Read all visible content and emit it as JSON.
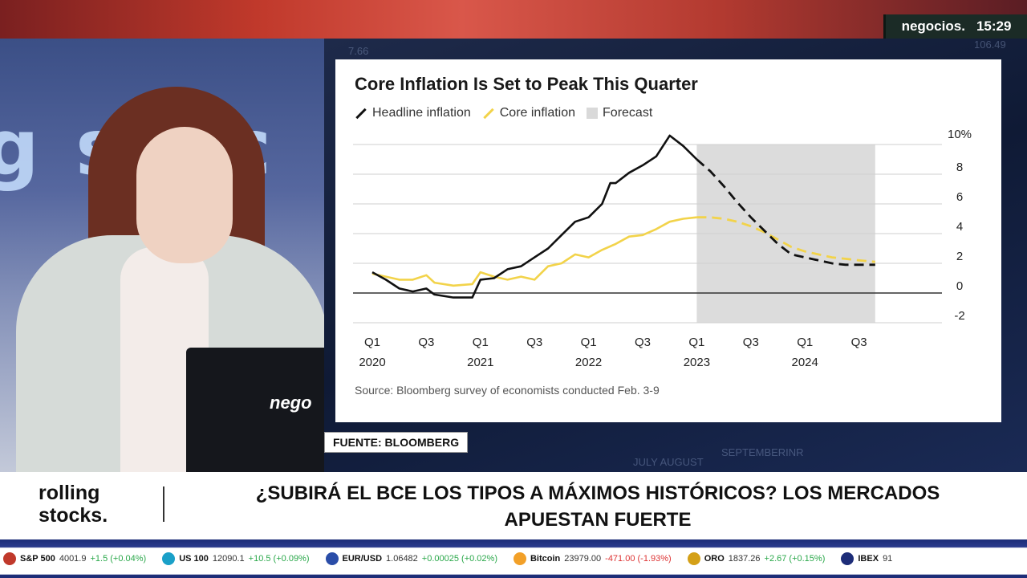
{
  "broadcast": {
    "channel_logo": "negocios.",
    "time": "15:29",
    "studio_wall_text": "g stoc",
    "watermark": "nego",
    "source_tag": "FUENTE: BLOOMBERG"
  },
  "background_ghost_text": [
    "7.66",
    "SEPTEMBERINR",
    "JULY AUGUST",
    "106.49"
  ],
  "chart": {
    "title": "Core Inflation Is Set to Peak This Quarter",
    "legend": [
      {
        "label": "Headline inflation",
        "color": "#111111"
      },
      {
        "label": "Core inflation",
        "color": "#f2d34a"
      },
      {
        "label": "Forecast",
        "color": "#d9d9d9"
      }
    ],
    "source": "Source: Bloomberg survey of economists conducted Feb. 3-9"
  },
  "chart_data": {
    "type": "line",
    "title": "Core Inflation Is Set to Peak This Quarter",
    "x_tick_labels": [
      {
        "q": 0,
        "top": "Q1",
        "bottom": "2020"
      },
      {
        "q": 2,
        "top": "Q3",
        "bottom": ""
      },
      {
        "q": 4,
        "top": "Q1",
        "bottom": "2021"
      },
      {
        "q": 6,
        "top": "Q3",
        "bottom": ""
      },
      {
        "q": 8,
        "top": "Q1",
        "bottom": "2022"
      },
      {
        "q": 10,
        "top": "Q3",
        "bottom": ""
      },
      {
        "q": 12,
        "top": "Q1",
        "bottom": "2023"
      },
      {
        "q": 14,
        "top": "Q3",
        "bottom": ""
      },
      {
        "q": 16,
        "top": "Q1",
        "bottom": "2024"
      },
      {
        "q": 18,
        "top": "Q3",
        "bottom": ""
      }
    ],
    "y_ticks": [
      -2,
      0,
      2,
      4,
      6,
      8,
      10
    ],
    "y_tick_labels": [
      "-2",
      "0",
      "2",
      "4",
      "6",
      "8",
      "10%"
    ],
    "ylim": [
      -2,
      10
    ],
    "xlim": [
      0,
      20
    ],
    "forecast_range": [
      12,
      18.6
    ],
    "grid": true,
    "series": [
      {
        "name": "Headline inflation",
        "color": "#111111",
        "actual": [
          [
            0,
            1.4
          ],
          [
            0.5,
            0.9
          ],
          [
            1,
            0.3
          ],
          [
            1.5,
            0.1
          ],
          [
            2,
            0.3
          ],
          [
            2.3,
            -0.1
          ],
          [
            3,
            -0.3
          ],
          [
            3.7,
            -0.3
          ],
          [
            4,
            0.9
          ],
          [
            4.5,
            1.0
          ],
          [
            5,
            1.6
          ],
          [
            5.5,
            1.8
          ],
          [
            6,
            2.4
          ],
          [
            6.5,
            3.0
          ],
          [
            7,
            3.9
          ],
          [
            7.5,
            4.8
          ],
          [
            8,
            5.1
          ],
          [
            8.5,
            6.0
          ],
          [
            8.8,
            7.4
          ],
          [
            9,
            7.4
          ],
          [
            9.5,
            8.1
          ],
          [
            10,
            8.6
          ],
          [
            10.5,
            9.2
          ],
          [
            11,
            10.6
          ],
          [
            11.5,
            9.9
          ],
          [
            12,
            9.0
          ]
        ],
        "forecast": [
          [
            12,
            9.0
          ],
          [
            12.5,
            8.2
          ],
          [
            13,
            7.2
          ],
          [
            13.5,
            6.1
          ],
          [
            14,
            5.1
          ],
          [
            14.5,
            4.2
          ],
          [
            15,
            3.3
          ],
          [
            15.5,
            2.6
          ],
          [
            16,
            2.4
          ],
          [
            16.5,
            2.2
          ],
          [
            17,
            2.0
          ],
          [
            17.5,
            1.9
          ],
          [
            18,
            1.9
          ],
          [
            18.6,
            1.9
          ]
        ]
      },
      {
        "name": "Core inflation",
        "color": "#f2d34a",
        "actual": [
          [
            0,
            1.3
          ],
          [
            0.5,
            1.1
          ],
          [
            1,
            0.9
          ],
          [
            1.5,
            0.9
          ],
          [
            2,
            1.2
          ],
          [
            2.3,
            0.7
          ],
          [
            3,
            0.5
          ],
          [
            3.7,
            0.6
          ],
          [
            4,
            1.4
          ],
          [
            4.5,
            1.1
          ],
          [
            5,
            0.9
          ],
          [
            5.5,
            1.1
          ],
          [
            6,
            0.9
          ],
          [
            6.5,
            1.8
          ],
          [
            7,
            2.0
          ],
          [
            7.5,
            2.6
          ],
          [
            8,
            2.4
          ],
          [
            8.5,
            2.9
          ],
          [
            9,
            3.3
          ],
          [
            9.5,
            3.8
          ],
          [
            10,
            3.9
          ],
          [
            10.5,
            4.3
          ],
          [
            11,
            4.8
          ],
          [
            11.5,
            5.0
          ],
          [
            12,
            5.1
          ]
        ],
        "forecast": [
          [
            12,
            5.1
          ],
          [
            12.5,
            5.1
          ],
          [
            13,
            5.0
          ],
          [
            13.5,
            4.8
          ],
          [
            14,
            4.5
          ],
          [
            14.5,
            4.1
          ],
          [
            15,
            3.6
          ],
          [
            15.5,
            3.1
          ],
          [
            16,
            2.8
          ],
          [
            16.5,
            2.6
          ],
          [
            17,
            2.4
          ],
          [
            17.5,
            2.3
          ],
          [
            18,
            2.2
          ],
          [
            18.6,
            2.1
          ]
        ]
      }
    ]
  },
  "lower_third": {
    "brand_line1": "rolling",
    "brand_line2": "stocks.",
    "headline_line1": "¿SUBIRÁ EL BCE LOS TIPOS A MÁXIMOS HISTÓRICOS? LOS MERCADOS",
    "headline_line2": "APUESTAN FUERTE"
  },
  "ticker": [
    {
      "name": "S&P 500",
      "value": "4001.9",
      "change": "+1.5 (+0.04%)",
      "dot_color": "#c0392b",
      "negative": false
    },
    {
      "name": "US 100",
      "value": "12090.1",
      "change": "+10.5 (+0.09%)",
      "dot_color": "#1aa0c8",
      "negative": false
    },
    {
      "name": "EUR/USD",
      "value": "1.06482",
      "change": "+0.00025 (+0.02%)",
      "dot_color": "#2a4da8",
      "negative": false
    },
    {
      "name": "Bitcoin",
      "value": "23979.00",
      "change": "-471.00 (-1.93%)",
      "dot_color": "#f2a028",
      "negative": true
    },
    {
      "name": "ORO",
      "value": "1837.26",
      "change": "+2.67 (+0.15%)",
      "dot_color": "#d4a017",
      "negative": false
    },
    {
      "name": "IBEX",
      "value": "91",
      "change": "",
      "dot_color": "#1d2d78",
      "negative": false
    }
  ]
}
